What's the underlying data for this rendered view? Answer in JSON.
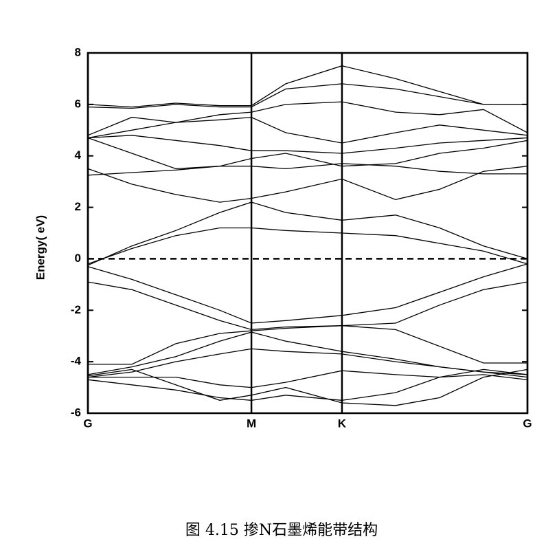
{
  "chart_data": {
    "type": "line",
    "ylabel": "Energy( eV)",
    "caption": "图 4.15 掺N石墨烯能带结构",
    "x": [
      0,
      0.1,
      0.2,
      0.3,
      0.372,
      0.45,
      0.578,
      0.7,
      0.8,
      0.9,
      1.0
    ],
    "xlim": [
      0,
      1
    ],
    "xticks": [
      {
        "value": 0,
        "label": "G"
      },
      {
        "value": 0.372,
        "label": "M"
      },
      {
        "value": 0.578,
        "label": "K"
      },
      {
        "value": 1,
        "label": "G"
      }
    ],
    "ylim": [
      -6,
      8
    ],
    "yticks": [
      -6,
      -4,
      -2,
      0,
      2,
      4,
      6,
      8
    ],
    "xgrid": true,
    "fermi_level": 0,
    "color": "#000000",
    "series": [
      {
        "values": [
          -0.3,
          -0.8,
          -1.4,
          -2.0,
          -2.5,
          -2.4,
          -2.2,
          -1.9,
          -1.3,
          -0.7,
          -0.2
        ]
      },
      {
        "values": [
          -0.9,
          -1.2,
          -1.8,
          -2.4,
          -2.75,
          -2.65,
          -2.6,
          -2.5,
          -1.8,
          -1.2,
          -0.9
        ]
      },
      {
        "values": [
          -4.1,
          -4.1,
          -3.3,
          -2.9,
          -2.8,
          -2.7,
          -2.6,
          -2.75,
          -3.4,
          -4.05,
          -4.05
        ]
      },
      {
        "values": [
          -4.5,
          -4.2,
          -3.8,
          -3.2,
          -2.85,
          -3.2,
          -3.6,
          -3.9,
          -4.2,
          -4.4,
          -4.5
        ]
      },
      {
        "values": [
          -4.6,
          -4.4,
          -4.0,
          -3.7,
          -3.5,
          -3.6,
          -3.7,
          -4.0,
          -4.2,
          -4.4,
          -4.6
        ]
      },
      {
        "values": [
          -4.6,
          -4.6,
          -4.6,
          -4.9,
          -5.0,
          -4.8,
          -4.35,
          -4.5,
          -4.6,
          -4.3,
          -4.5
        ]
      },
      {
        "values": [
          -4.7,
          -4.9,
          -5.1,
          -5.4,
          -5.5,
          -5.3,
          -5.5,
          -5.2,
          -4.6,
          -4.5,
          -4.7
        ]
      },
      {
        "values": [
          -4.55,
          -4.3,
          -4.9,
          -5.5,
          -5.3,
          -5.0,
          -5.6,
          -5.7,
          -5.4,
          -4.6,
          -4.3
        ]
      },
      {
        "values": [
          -0.2,
          0.4,
          0.9,
          1.2,
          1.2,
          1.1,
          1.0,
          0.9,
          0.6,
          0.3,
          -0.2
        ]
      },
      {
        "values": [
          -0.25,
          0.5,
          1.1,
          1.8,
          2.2,
          1.8,
          1.5,
          1.7,
          1.2,
          0.5,
          0.0
        ]
      },
      {
        "values": [
          3.5,
          2.9,
          2.5,
          2.2,
          2.35,
          2.6,
          3.1,
          2.3,
          2.7,
          3.4,
          3.6
        ]
      },
      {
        "values": [
          3.25,
          3.35,
          3.45,
          3.6,
          3.6,
          3.5,
          3.7,
          3.6,
          3.4,
          3.3,
          3.3
        ]
      },
      {
        "values": [
          4.7,
          4.1,
          3.5,
          3.6,
          3.9,
          4.1,
          3.6,
          3.7,
          4.1,
          4.3,
          4.6
        ]
      },
      {
        "values": [
          4.7,
          4.8,
          4.6,
          4.4,
          4.2,
          4.2,
          4.1,
          4.3,
          4.5,
          4.6,
          4.7
        ]
      },
      {
        "values": [
          4.7,
          5.0,
          5.3,
          5.4,
          5.5,
          4.9,
          4.5,
          4.9,
          5.2,
          5.0,
          4.8
        ]
      },
      {
        "values": [
          4.8,
          5.5,
          5.3,
          5.6,
          5.7,
          6.0,
          6.1,
          5.7,
          5.6,
          5.8,
          4.9
        ]
      },
      {
        "values": [
          5.9,
          5.85,
          6.0,
          5.9,
          5.9,
          6.6,
          6.8,
          6.6,
          6.3,
          6.0,
          6.0
        ]
      },
      {
        "values": [
          6.0,
          5.9,
          6.05,
          5.95,
          5.95,
          6.8,
          7.5,
          7.0,
          6.5,
          6.0,
          6.0
        ]
      }
    ]
  }
}
